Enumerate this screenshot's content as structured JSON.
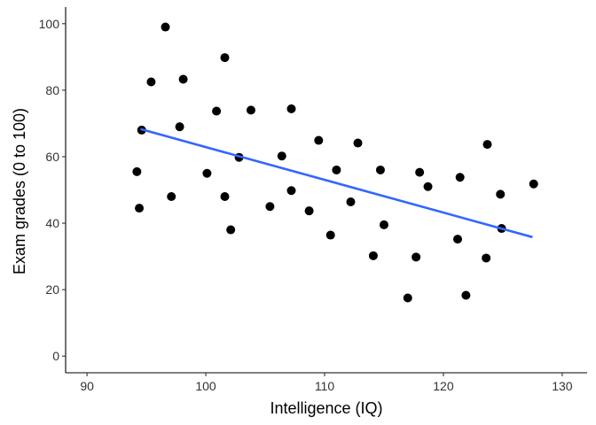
{
  "chart_data": {
    "type": "scatter",
    "title": "",
    "xlabel": "Intelligence (IQ)",
    "ylabel": "Exam grades (0 to 100)",
    "xlim": [
      88.2,
      132.1
    ],
    "ylim": [
      -5,
      105
    ],
    "x_ticks": [
      90,
      100,
      110,
      120,
      130
    ],
    "y_ticks": [
      0,
      20,
      40,
      60,
      80,
      100
    ],
    "grid": false,
    "point_color": "#000000",
    "line_color": "#3366FF",
    "points": [
      {
        "x": 94.2,
        "y": 55.5
      },
      {
        "x": 94.4,
        "y": 44.5
      },
      {
        "x": 94.6,
        "y": 68
      },
      {
        "x": 95.4,
        "y": 82.5
      },
      {
        "x": 96.6,
        "y": 99
      },
      {
        "x": 97.1,
        "y": 48
      },
      {
        "x": 97.8,
        "y": 69
      },
      {
        "x": 98.1,
        "y": 83.3
      },
      {
        "x": 100.1,
        "y": 55
      },
      {
        "x": 100.9,
        "y": 73.7
      },
      {
        "x": 101.6,
        "y": 89.8
      },
      {
        "x": 101.6,
        "y": 48
      },
      {
        "x": 102.1,
        "y": 38
      },
      {
        "x": 102.8,
        "y": 59.8
      },
      {
        "x": 103.8,
        "y": 74
      },
      {
        "x": 105.4,
        "y": 45
      },
      {
        "x": 106.4,
        "y": 60.2
      },
      {
        "x": 107.2,
        "y": 74.4
      },
      {
        "x": 107.2,
        "y": 49.8
      },
      {
        "x": 108.7,
        "y": 43.7
      },
      {
        "x": 109.5,
        "y": 64.9
      },
      {
        "x": 110.5,
        "y": 36.4
      },
      {
        "x": 111.0,
        "y": 56
      },
      {
        "x": 112.2,
        "y": 46.4
      },
      {
        "x": 112.8,
        "y": 64.1
      },
      {
        "x": 114.1,
        "y": 30.2
      },
      {
        "x": 114.7,
        "y": 56
      },
      {
        "x": 115.0,
        "y": 39.5
      },
      {
        "x": 117.0,
        "y": 17.5
      },
      {
        "x": 117.7,
        "y": 29.8
      },
      {
        "x": 118.0,
        "y": 55.3
      },
      {
        "x": 118.7,
        "y": 51
      },
      {
        "x": 121.2,
        "y": 35.2
      },
      {
        "x": 121.4,
        "y": 53.8
      },
      {
        "x": 121.9,
        "y": 18.3
      },
      {
        "x": 123.6,
        "y": 29.5
      },
      {
        "x": 123.7,
        "y": 63.7
      },
      {
        "x": 124.8,
        "y": 48.7
      },
      {
        "x": 124.9,
        "y": 38.4
      },
      {
        "x": 127.6,
        "y": 51.8
      }
    ],
    "trend_line": {
      "x": [
        94.5,
        127.5
      ],
      "y": [
        68.3,
        35.8
      ]
    }
  }
}
